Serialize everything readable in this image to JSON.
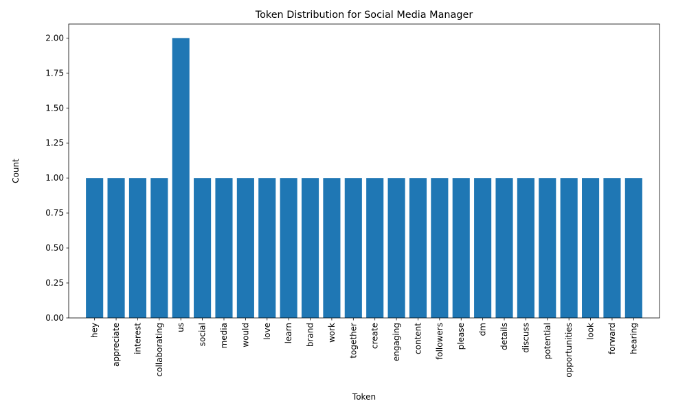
{
  "chart_data": {
    "type": "bar",
    "title": "Token Distribution for Social Media Manager",
    "xlabel": "Token",
    "ylabel": "Count",
    "categories": [
      "hey",
      "appreciate",
      "interest",
      "collaborating",
      "us",
      "social",
      "media",
      "would",
      "love",
      "learn",
      "brand",
      "work",
      "together",
      "create",
      "engaging",
      "content",
      "followers",
      "please",
      "dm",
      "details",
      "discuss",
      "potential",
      "opportunities",
      "look",
      "forward",
      "hearing"
    ],
    "values": [
      1,
      1,
      1,
      1,
      2,
      1,
      1,
      1,
      1,
      1,
      1,
      1,
      1,
      1,
      1,
      1,
      1,
      1,
      1,
      1,
      1,
      1,
      1,
      1,
      1,
      1
    ],
    "ylim": [
      0,
      2.1
    ],
    "yticks": [
      "0.00",
      "0.25",
      "0.50",
      "0.75",
      "1.00",
      "1.25",
      "1.50",
      "1.75",
      "2.00"
    ],
    "bar_color": "#1f77b4",
    "grid": false,
    "legend": "none"
  }
}
